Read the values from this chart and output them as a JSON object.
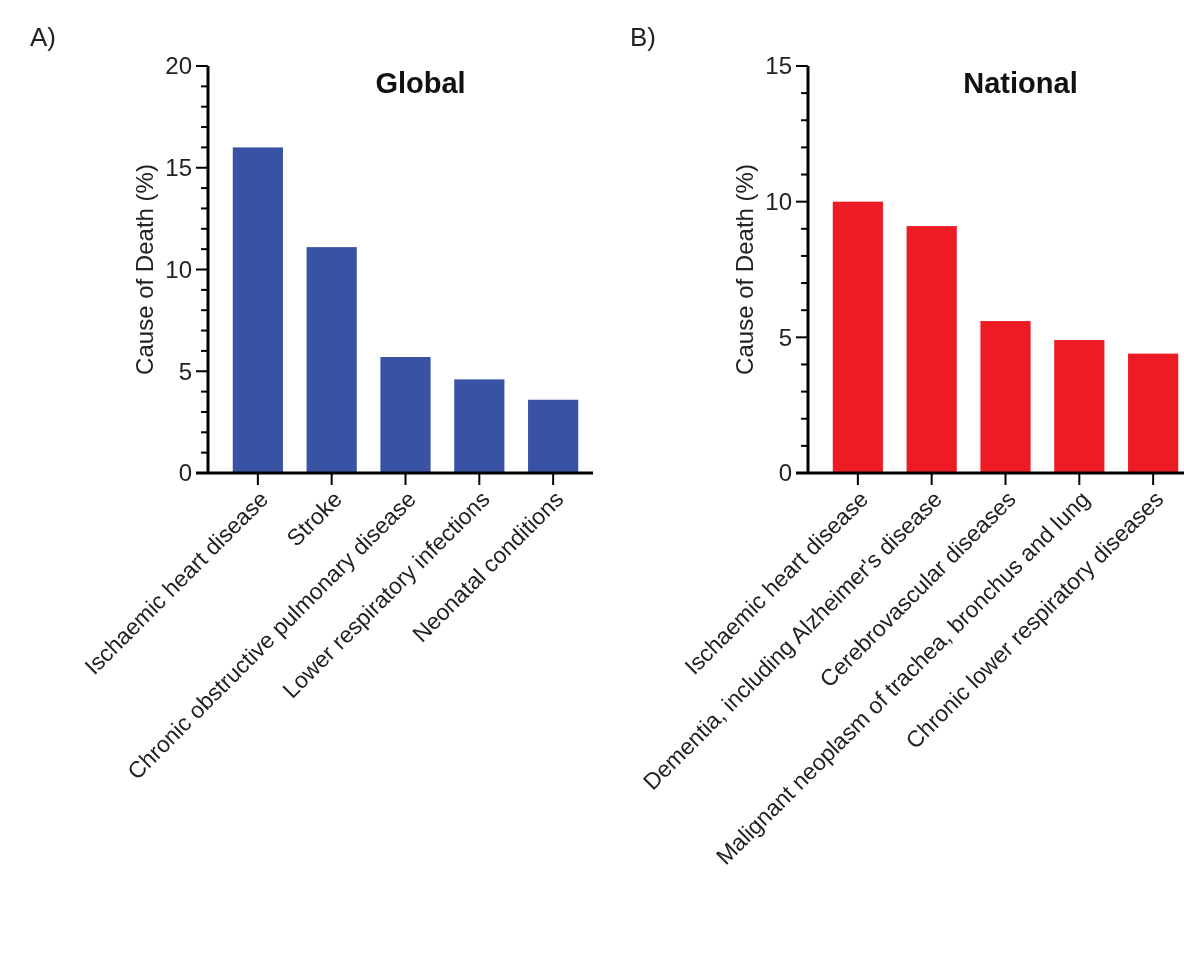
{
  "chart_data": [
    {
      "type": "bar",
      "title": "Global",
      "ylabel": "Cause of Death (%)",
      "annotations": [
        "A)"
      ],
      "categories": [
        "Ischaemic heart disease",
        "Stroke",
        "Chronic obstructive pulmonary disease",
        "Lower respiratory infections",
        "Neonatal conditions"
      ],
      "values": [
        16,
        11.1,
        5.7,
        4.6,
        3.6
      ],
      "color": "#3953a4",
      "ylim": [
        0,
        20
      ],
      "yticks": [
        0,
        {
          "value": 1,
          "label": null
        },
        {
          "value": 2,
          "label": null
        },
        {
          "value": 3,
          "label": null
        },
        {
          "value": 4,
          "label": null
        },
        5,
        {
          "value": 6,
          "label": null
        },
        {
          "value": 7,
          "label": null
        },
        {
          "value": 8,
          "label": null
        },
        {
          "value": 9,
          "label": null
        },
        10,
        {
          "value": 11,
          "label": null
        },
        {
          "value": 12,
          "label": null
        },
        {
          "value": 13,
          "label": null
        },
        {
          "value": 14,
          "label": null
        },
        15,
        {
          "value": 16,
          "label": null
        },
        {
          "value": 17,
          "label": null
        },
        {
          "value": 18,
          "label": null
        },
        {
          "value": 19,
          "label": null
        },
        20
      ],
      "grid": false
    },
    {
      "type": "bar",
      "title": "National",
      "ylabel": "Cause of Death (%)",
      "annotations": [
        "B)"
      ],
      "categories": [
        "Ischaemic heart disease",
        "Dementia, including Alzheimer's disease",
        "Cerebrovascular diseases",
        "Malignant neoplasm of trachea, bronchus and lung",
        "Chronic lower respiratory diseases"
      ],
      "values": [
        10,
        9.1,
        5.6,
        4.9,
        4.4
      ],
      "color": "#ed1c24",
      "ylim": [
        0,
        15
      ],
      "yticks": [
        0,
        {
          "value": 1,
          "label": null
        },
        {
          "value": 2,
          "label": null
        },
        {
          "value": 3,
          "label": null
        },
        {
          "value": 4,
          "label": null
        },
        5,
        {
          "value": 6,
          "label": null
        },
        {
          "value": 7,
          "label": null
        },
        {
          "value": 8,
          "label": null
        },
        {
          "value": 9,
          "label": null
        },
        10,
        {
          "value": 11,
          "label": null
        },
        {
          "value": 12,
          "label": null
        },
        {
          "value": 13,
          "label": null
        },
        {
          "value": 14,
          "label": null
        },
        15
      ],
      "grid": false
    }
  ]
}
